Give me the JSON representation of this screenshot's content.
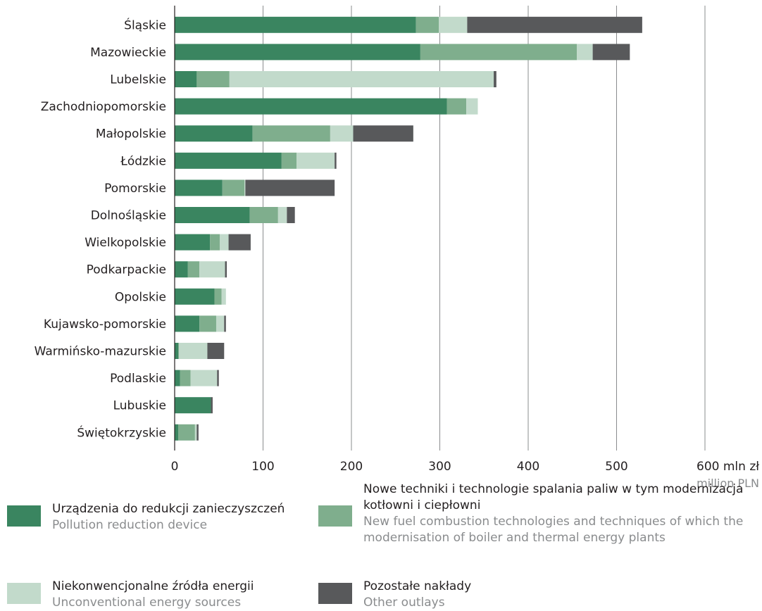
{
  "chart_data": {
    "type": "bar",
    "orientation": "horizontal",
    "stacked": true,
    "categories": [
      "Śląskie",
      "Mazowieckie",
      "Lubelskie",
      "Zachodniopomorskie",
      "Małopolskie",
      "Łódzkie",
      "Pomorskie",
      "Dolnośląskie",
      "Wielkopolskie",
      "Podkarpackie",
      "Opolskie",
      "Kujawsko-pomorskie",
      "Warmińsko-mazurskie",
      "Podlaskie",
      "Lubuskie",
      "Świętokrzyskie"
    ],
    "series": [
      {
        "name": "Urządzenia do redukcji zanieczyszczeń",
        "name_en": "Pollution reduction device",
        "color": "#3a8560",
        "values": [
          273,
          278,
          25,
          308,
          88,
          121,
          54,
          85,
          40,
          15,
          45,
          28,
          4,
          6,
          41,
          4
        ]
      },
      {
        "name": "Nowe techniki i technologie spalania paliw w tym modernizacja kotłowni i ciepłowni",
        "name_en": "New fuel combustion technologies and techniques of which the modernisation of boiler and thermal energy plants",
        "color": "#7fae8d",
        "values": [
          26,
          177,
          37,
          22,
          88,
          17,
          25,
          32,
          11,
          13,
          8,
          19,
          1,
          12,
          0,
          19
        ]
      },
      {
        "name": "Niekonwencjonalne źródła energii",
        "name_en": "Unconventional energy sources",
        "color": "#c2dacb",
        "values": [
          32,
          18,
          299,
          13,
          26,
          43,
          1,
          10,
          10,
          29,
          5,
          9,
          32,
          30,
          0,
          2
        ]
      },
      {
        "name": "Pozostałe nakłady",
        "name_en": "Other outlays",
        "color": "#58595b",
        "values": [
          198,
          42,
          3,
          0,
          68,
          2,
          101,
          9,
          25,
          2,
          0,
          2,
          19,
          2,
          2,
          2
        ]
      }
    ],
    "x_ticks": [
      "0",
      "100",
      "200",
      "300",
      "400",
      "500",
      "600"
    ],
    "xlim": [
      0,
      600
    ],
    "xlabel": "mln zł",
    "xlabel_en": "million PLN",
    "grid": "vertical",
    "legend_position": "bottom"
  },
  "legend": {
    "items": [
      {
        "pl": "Urządzenia do redukcji zanieczyszczeń",
        "en": "Pollution reduction device",
        "color": "#3a8560"
      },
      {
        "pl": "Nowe techniki i technologie spalania paliw w tym modernizacja kotłowni i ciepłowni",
        "en": "New fuel combustion technologies and techniques of which the modernisation of boiler and thermal energy plants",
        "color": "#7fae8d"
      },
      {
        "pl": "Niekonwencjonalne źródła energii",
        "en": "Unconventional energy sources",
        "color": "#c2dacb"
      },
      {
        "pl": "Pozostałe nakłady",
        "en": "Other outlays",
        "color": "#58595b"
      }
    ]
  }
}
